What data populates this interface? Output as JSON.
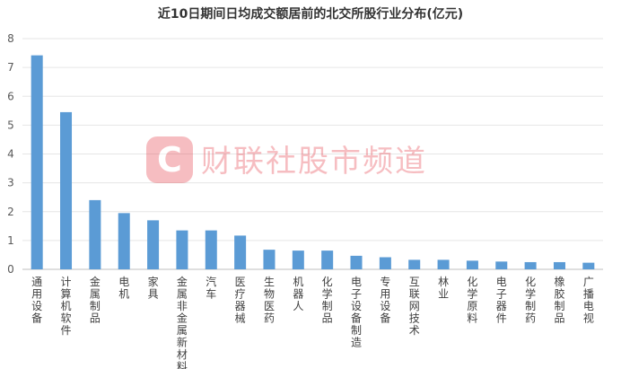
{
  "chart_data": {
    "type": "bar",
    "title": "近10日期间日均成交额居前的北交所股行业分布(亿元)",
    "xlabel": "",
    "ylabel": "",
    "ylim": [
      0,
      8
    ],
    "yticks": [
      "0",
      "1",
      "2",
      "3",
      "4",
      "5",
      "6",
      "7",
      "8"
    ],
    "grid": true,
    "legend": "none",
    "categories": [
      "通用设备",
      "计算机软件",
      "金属制品",
      "电机",
      "家具",
      "金属非金属新材料",
      "汽车",
      "医疗器械",
      "生物医药",
      "机器人",
      "化学制品",
      "电子设备制造",
      "专用设备",
      "互联网技术",
      "林业",
      "化学原料",
      "电子器件",
      "化学制药",
      "橡胶制品",
      "广播电视"
    ],
    "values": [
      7.42,
      5.45,
      2.4,
      1.95,
      1.7,
      1.35,
      1.35,
      1.17,
      0.68,
      0.65,
      0.65,
      0.47,
      0.42,
      0.33,
      0.33,
      0.3,
      0.27,
      0.25,
      0.25,
      0.23
    ],
    "bar_color": "#5b9bd5"
  },
  "watermark": {
    "logo_letter": "C",
    "text": "财联社股市频道",
    "color": "#e8464f"
  }
}
